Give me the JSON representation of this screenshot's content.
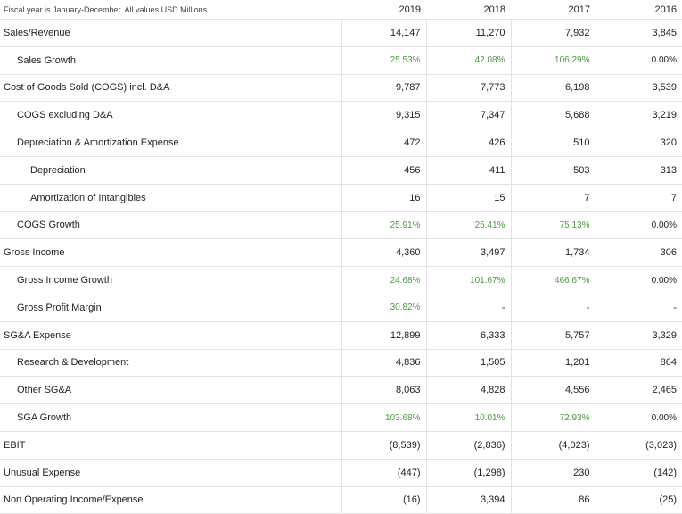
{
  "header": {
    "note": "Fiscal year is January-December. All values USD Millions.",
    "years": [
      "2019",
      "2018",
      "2017",
      "2016"
    ]
  },
  "colors": {
    "growth_positive": "#4a9a3e",
    "text": "#222222",
    "border": "#e2e2e2"
  },
  "rows": [
    {
      "label": "Sales/Revenue",
      "level": 0,
      "values": [
        "14,147",
        "11,270",
        "7,932",
        "3,845"
      ],
      "green": [
        false,
        false,
        false,
        false
      ]
    },
    {
      "label": "Sales Growth",
      "level": 1,
      "values": [
        "25.53%",
        "42.08%",
        "106.29%",
        "0.00%"
      ],
      "green": [
        true,
        true,
        true,
        false
      ]
    },
    {
      "label": "Cost of Goods Sold (COGS) incl. D&A",
      "level": 0,
      "values": [
        "9,787",
        "7,773",
        "6,198",
        "3,539"
      ],
      "green": [
        false,
        false,
        false,
        false
      ]
    },
    {
      "label": "COGS excluding D&A",
      "level": 1,
      "values": [
        "9,315",
        "7,347",
        "5,688",
        "3,219"
      ],
      "green": [
        false,
        false,
        false,
        false
      ]
    },
    {
      "label": "Depreciation & Amortization Expense",
      "level": 1,
      "values": [
        "472",
        "426",
        "510",
        "320"
      ],
      "green": [
        false,
        false,
        false,
        false
      ]
    },
    {
      "label": "Depreciation",
      "level": 2,
      "values": [
        "456",
        "411",
        "503",
        "313"
      ],
      "green": [
        false,
        false,
        false,
        false
      ]
    },
    {
      "label": "Amortization of Intangibles",
      "level": 2,
      "values": [
        "16",
        "15",
        "7",
        "7"
      ],
      "green": [
        false,
        false,
        false,
        false
      ]
    },
    {
      "label": "COGS Growth",
      "level": 1,
      "values": [
        "25.91%",
        "25.41%",
        "75.13%",
        "0.00%"
      ],
      "green": [
        true,
        true,
        true,
        false
      ]
    },
    {
      "label": "Gross Income",
      "level": 0,
      "values": [
        "4,360",
        "3,497",
        "1,734",
        "306"
      ],
      "green": [
        false,
        false,
        false,
        false
      ]
    },
    {
      "label": "Gross Income Growth",
      "level": 1,
      "values": [
        "24.68%",
        "101.67%",
        "466.67%",
        "0.00%"
      ],
      "green": [
        true,
        true,
        true,
        false
      ]
    },
    {
      "label": "Gross Profit Margin",
      "level": 1,
      "values": [
        "30.82%",
        "-",
        "-",
        "-"
      ],
      "green": [
        true,
        false,
        false,
        false
      ]
    },
    {
      "label": "SG&A Expense",
      "level": 0,
      "values": [
        "12,899",
        "6,333",
        "5,757",
        "3,329"
      ],
      "green": [
        false,
        false,
        false,
        false
      ]
    },
    {
      "label": "Research & Development",
      "level": 1,
      "values": [
        "4,836",
        "1,505",
        "1,201",
        "864"
      ],
      "green": [
        false,
        false,
        false,
        false
      ]
    },
    {
      "label": "Other SG&A",
      "level": 1,
      "values": [
        "8,063",
        "4,828",
        "4,556",
        "2,465"
      ],
      "green": [
        false,
        false,
        false,
        false
      ]
    },
    {
      "label": "SGA Growth",
      "level": 1,
      "values": [
        "103.68%",
        "10.01%",
        "72.93%",
        "0.00%"
      ],
      "green": [
        true,
        true,
        true,
        false
      ]
    },
    {
      "label": "EBIT",
      "level": 0,
      "values": [
        "(8,539)",
        "(2,836)",
        "(4,023)",
        "(3,023)"
      ],
      "green": [
        false,
        false,
        false,
        false
      ]
    },
    {
      "label": "Unusual Expense",
      "level": 0,
      "values": [
        "(447)",
        "(1,298)",
        "230",
        "(142)"
      ],
      "green": [
        false,
        false,
        false,
        false
      ]
    },
    {
      "label": "Non Operating Income/Expense",
      "level": 0,
      "values": [
        "(16)",
        "3,394",
        "86",
        "(25)"
      ],
      "green": [
        false,
        false,
        false,
        false
      ]
    }
  ]
}
